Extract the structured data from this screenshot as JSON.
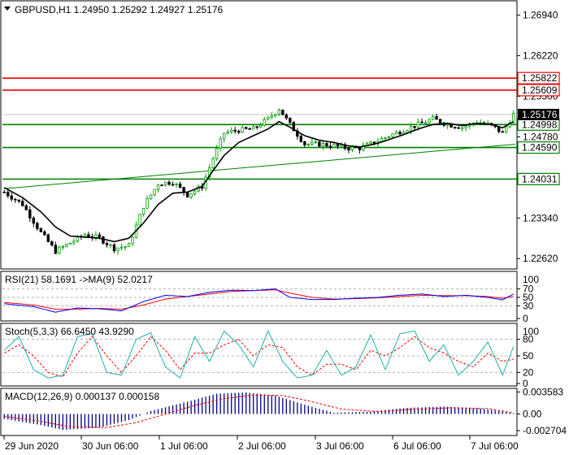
{
  "chart_data": [
    {
      "type": "candlestick",
      "header": "GBPUSD,H1  1.24950 1.25292 1.24927 1.25176",
      "yticks": [
        "1.26940",
        "1.26220",
        "1.25500",
        "1.24780",
        "1.23340",
        "1.22620"
      ],
      "ylim": [
        1.2245,
        1.2718
      ],
      "current_price": "1.25176",
      "resistance_levels": [
        {
          "label": "1.25822",
          "value": 1.25822,
          "color": "#ff0000"
        },
        {
          "label": "1.25609",
          "value": 1.25609,
          "color": "#ff0000"
        }
      ],
      "support_levels": [
        {
          "label": "1.24998",
          "value": 1.24998,
          "color": "#008000"
        },
        {
          "label": "1.24590",
          "value": 1.2459,
          "color": "#008000"
        },
        {
          "label": "1.24031",
          "value": 1.24031,
          "color": "#008000"
        }
      ],
      "trendline": {
        "from": [
          0,
          1.2386
        ],
        "to": [
          139,
          1.2465
        ],
        "color": "#008000"
      },
      "anchors": [
        [
          0,
          1.238
        ],
        [
          5,
          1.2358
        ],
        [
          10,
          1.2308
        ],
        [
          14,
          1.2275
        ],
        [
          18,
          1.229
        ],
        [
          22,
          1.2305
        ],
        [
          26,
          1.2298
        ],
        [
          30,
          1.228
        ],
        [
          34,
          1.2285
        ],
        [
          38,
          1.2355
        ],
        [
          42,
          1.2395
        ],
        [
          46,
          1.2398
        ],
        [
          50,
          1.2375
        ],
        [
          54,
          1.239
        ],
        [
          57,
          1.244
        ],
        [
          60,
          1.2485
        ],
        [
          64,
          1.249
        ],
        [
          68,
          1.2492
        ],
        [
          72,
          1.251
        ],
        [
          75,
          1.2528
        ],
        [
          78,
          1.25
        ],
        [
          82,
          1.2465
        ],
        [
          86,
          1.2465
        ],
        [
          90,
          1.2462
        ],
        [
          94,
          1.2458
        ],
        [
          97,
          1.2458
        ],
        [
          101,
          1.2468
        ],
        [
          105,
          1.248
        ],
        [
          109,
          1.249
        ],
        [
          113,
          1.25
        ],
        [
          117,
          1.251
        ],
        [
          121,
          1.25
        ],
        [
          125,
          1.2495
        ],
        [
          129,
          1.2505
        ],
        [
          133,
          1.2498
        ],
        [
          136,
          1.2485
        ],
        [
          139,
          1.2518
        ]
      ],
      "ma_anchors": [
        [
          0,
          1.2388
        ],
        [
          5,
          1.237
        ],
        [
          10,
          1.2345
        ],
        [
          14,
          1.2318
        ],
        [
          18,
          1.2302
        ],
        [
          22,
          1.23
        ],
        [
          26,
          1.2298
        ],
        [
          30,
          1.2292
        ],
        [
          34,
          1.2298
        ],
        [
          38,
          1.2325
        ],
        [
          42,
          1.2358
        ],
        [
          46,
          1.2378
        ],
        [
          50,
          1.238
        ],
        [
          54,
          1.239
        ],
        [
          57,
          1.2418
        ],
        [
          60,
          1.2445
        ],
        [
          64,
          1.2468
        ],
        [
          68,
          1.248
        ],
        [
          72,
          1.2492
        ],
        [
          75,
          1.2505
        ],
        [
          78,
          1.2495
        ],
        [
          82,
          1.248
        ],
        [
          86,
          1.2472
        ],
        [
          90,
          1.2468
        ],
        [
          94,
          1.2462
        ],
        [
          97,
          1.246
        ],
        [
          101,
          1.2465
        ],
        [
          105,
          1.2473
        ],
        [
          109,
          1.2482
        ],
        [
          113,
          1.2492
        ],
        [
          117,
          1.25
        ],
        [
          121,
          1.2502
        ],
        [
          125,
          1.2498
        ],
        [
          129,
          1.2502
        ],
        [
          133,
          1.25
        ],
        [
          136,
          1.2494
        ],
        [
          139,
          1.2505
        ]
      ],
      "bars": 140
    },
    {
      "type": "line",
      "header": "RSI(21) 58.1691  ->MA(9) 52.0217",
      "yticks": [
        "70",
        "50",
        "30",
        "0"
      ],
      "top_tick": "100",
      "ylim": [
        0,
        100
      ],
      "rsi_anchors": [
        [
          0,
          35
        ],
        [
          8,
          28
        ],
        [
          14,
          15
        ],
        [
          20,
          25
        ],
        [
          26,
          23
        ],
        [
          32,
          18
        ],
        [
          38,
          40
        ],
        [
          44,
          55
        ],
        [
          50,
          52
        ],
        [
          56,
          62
        ],
        [
          62,
          67
        ],
        [
          68,
          66
        ],
        [
          74,
          70
        ],
        [
          78,
          50
        ],
        [
          84,
          45
        ],
        [
          90,
          45
        ],
        [
          96,
          48
        ],
        [
          102,
          50
        ],
        [
          108,
          55
        ],
        [
          114,
          58
        ],
        [
          120,
          52
        ],
        [
          126,
          55
        ],
        [
          132,
          50
        ],
        [
          136,
          44
        ],
        [
          139,
          58
        ]
      ],
      "rsi_ma_anchors": [
        [
          0,
          38
        ],
        [
          8,
          32
        ],
        [
          14,
          22
        ],
        [
          20,
          22
        ],
        [
          26,
          24
        ],
        [
          32,
          22
        ],
        [
          38,
          32
        ],
        [
          44,
          46
        ],
        [
          50,
          52
        ],
        [
          56,
          58
        ],
        [
          62,
          64
        ],
        [
          68,
          66
        ],
        [
          74,
          68
        ],
        [
          78,
          60
        ],
        [
          84,
          50
        ],
        [
          90,
          46
        ],
        [
          96,
          47
        ],
        [
          102,
          49
        ],
        [
          108,
          52
        ],
        [
          114,
          55
        ],
        [
          120,
          54
        ],
        [
          126,
          54
        ],
        [
          132,
          52
        ],
        [
          136,
          48
        ],
        [
          139,
          52
        ]
      ]
    },
    {
      "type": "line",
      "header": "Stoch(5,3,3) 66.6450 43.9290",
      "yticks": [
        "80",
        "50",
        "20",
        "0"
      ],
      "top_tick": "100",
      "ylim": [
        0,
        100
      ],
      "main_anchors": [
        [
          0,
          60
        ],
        [
          4,
          85
        ],
        [
          8,
          25
        ],
        [
          12,
          10
        ],
        [
          16,
          15
        ],
        [
          20,
          85
        ],
        [
          24,
          90
        ],
        [
          28,
          20
        ],
        [
          32,
          15
        ],
        [
          36,
          80
        ],
        [
          40,
          92
        ],
        [
          44,
          30
        ],
        [
          48,
          10
        ],
        [
          52,
          85
        ],
        [
          56,
          40
        ],
        [
          60,
          95
        ],
        [
          64,
          70
        ],
        [
          68,
          30
        ],
        [
          72,
          95
        ],
        [
          76,
          40
        ],
        [
          80,
          10
        ],
        [
          84,
          15
        ],
        [
          88,
          60
        ],
        [
          92,
          15
        ],
        [
          96,
          30
        ],
        [
          100,
          88
        ],
        [
          104,
          25
        ],
        [
          108,
          90
        ],
        [
          112,
          95
        ],
        [
          116,
          40
        ],
        [
          120,
          70
        ],
        [
          124,
          15
        ],
        [
          128,
          40
        ],
        [
          132,
          75
        ],
        [
          136,
          15
        ],
        [
          139,
          67
        ]
      ],
      "signal_anchors": [
        [
          0,
          55
        ],
        [
          4,
          70
        ],
        [
          8,
          50
        ],
        [
          12,
          20
        ],
        [
          16,
          12
        ],
        [
          20,
          55
        ],
        [
          24,
          85
        ],
        [
          28,
          50
        ],
        [
          32,
          20
        ],
        [
          36,
          50
        ],
        [
          40,
          85
        ],
        [
          44,
          60
        ],
        [
          48,
          25
        ],
        [
          52,
          55
        ],
        [
          56,
          55
        ],
        [
          60,
          70
        ],
        [
          64,
          80
        ],
        [
          68,
          50
        ],
        [
          72,
          70
        ],
        [
          76,
          65
        ],
        [
          80,
          30
        ],
        [
          84,
          15
        ],
        [
          88,
          35
        ],
        [
          92,
          35
        ],
        [
          96,
          25
        ],
        [
          100,
          60
        ],
        [
          104,
          50
        ],
        [
          108,
          65
        ],
        [
          112,
          85
        ],
        [
          116,
          65
        ],
        [
          120,
          55
        ],
        [
          124,
          40
        ],
        [
          128,
          30
        ],
        [
          132,
          55
        ],
        [
          136,
          40
        ],
        [
          139,
          44
        ]
      ]
    },
    {
      "type": "bar",
      "header": "MACD(12,26,9) 0.000137 0.000158",
      "yticks": [
        "0.003583",
        "0.00",
        "-0.002704"
      ],
      "ylim": [
        -0.0031,
        0.0039
      ],
      "macd_anchors": [
        [
          0,
          -0.0008
        ],
        [
          10,
          -0.0018
        ],
        [
          16,
          -0.0026
        ],
        [
          26,
          -0.0022
        ],
        [
          34,
          -0.001
        ],
        [
          40,
          0.0005
        ],
        [
          50,
          0.002
        ],
        [
          58,
          0.0033
        ],
        [
          66,
          0.0035
        ],
        [
          74,
          0.003
        ],
        [
          82,
          0.0015
        ],
        [
          90,
          0.0002
        ],
        [
          100,
          0.0004
        ],
        [
          110,
          0.001
        ],
        [
          120,
          0.0012
        ],
        [
          130,
          0.0009
        ],
        [
          139,
          0.00014
        ]
      ],
      "signal_anchors": [
        [
          0,
          -0.0004
        ],
        [
          10,
          -0.0012
        ],
        [
          18,
          -0.0021
        ],
        [
          28,
          -0.0022
        ],
        [
          36,
          -0.0014
        ],
        [
          44,
          0.0
        ],
        [
          52,
          0.0014
        ],
        [
          60,
          0.0025
        ],
        [
          68,
          0.0031
        ],
        [
          76,
          0.003
        ],
        [
          84,
          0.002
        ],
        [
          92,
          0.0008
        ],
        [
          102,
          0.0004
        ],
        [
          112,
          0.0008
        ],
        [
          122,
          0.001
        ],
        [
          132,
          0.0009
        ],
        [
          139,
          0.00016
        ]
      ]
    }
  ],
  "x_axis": {
    "labels": [
      "29 Jun 2020",
      "30 Jun 06:00",
      "1 Jul 06:00",
      "2 Jul 06:00",
      "3 Jul 06:00",
      "6 Jul 06:00",
      "7 Jul 06:00"
    ],
    "label_bars": [
      0,
      25,
      50,
      75,
      99,
      122,
      146
    ]
  },
  "colors": {
    "bull": "#00a000",
    "bear": "#000000",
    "ma": "#000000",
    "rsi": "#0000ff",
    "rsi_ma": "#ff0000",
    "stoch_main": "#20b2aa",
    "stoch_signal": "#ff0000",
    "macd_hist": "#000080",
    "macd_signal": "#ff0000"
  }
}
